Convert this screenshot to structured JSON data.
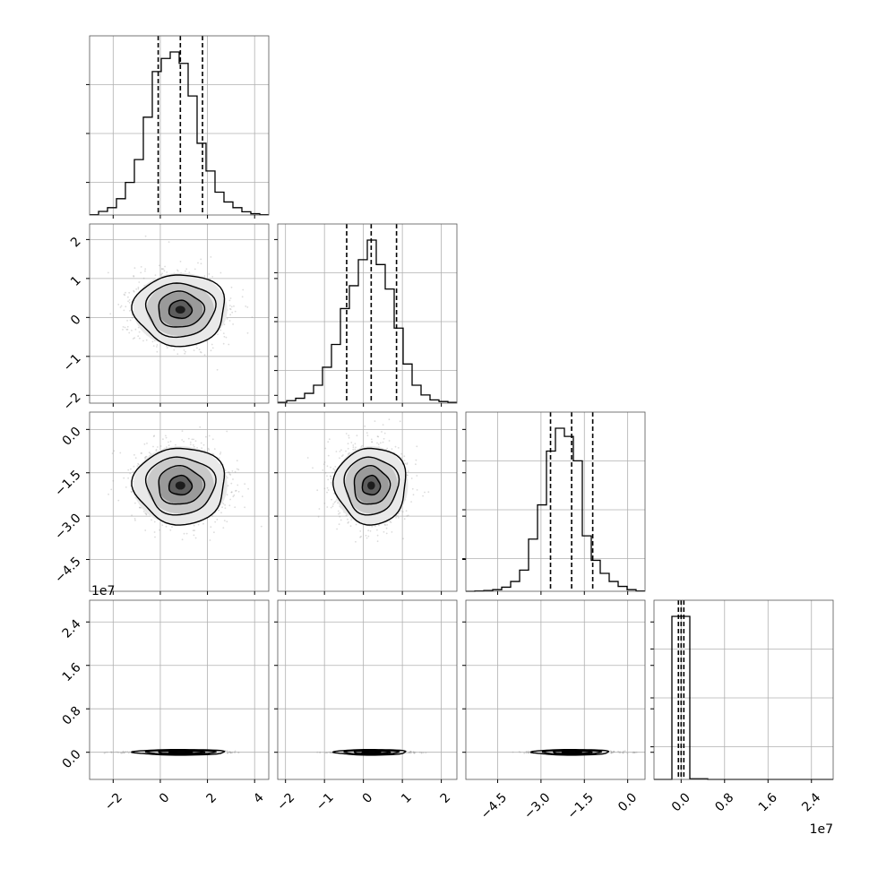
{
  "chart_data": {
    "type": "corner",
    "grid": true,
    "parameters": [
      {
        "range": [
          -3.0,
          4.6
        ],
        "ticks": [
          -2,
          0,
          2,
          4
        ],
        "tick_labels": [
          "−2",
          "0",
          "2",
          "4"
        ]
      },
      {
        "range": [
          -2.2,
          2.4
        ],
        "ticks": [
          -2,
          -1,
          0,
          1,
          2
        ],
        "tick_labels": [
          "−2",
          "−1",
          "0",
          "1",
          "2"
        ]
      },
      {
        "range": [
          -5.6,
          0.6
        ],
        "ticks": [
          -4.5,
          -3.0,
          -1.5,
          0.0
        ],
        "tick_labels": [
          "−4.5",
          "−3.0",
          "−1.5",
          "0.0"
        ]
      },
      {
        "range": [
          -5000000,
          28000000
        ],
        "ticks": [
          0,
          8000000,
          16000000,
          24000000
        ],
        "tick_labels": [
          "0.0",
          "0.8",
          "1.6",
          "2.4"
        ],
        "offset_text": "1e7"
      }
    ],
    "histograms": [
      {
        "param": 0,
        "bin_edges": [
          -3.0,
          -2.62,
          -2.24,
          -1.86,
          -1.48,
          -1.1,
          -0.72,
          -0.34,
          0.04,
          0.42,
          0.8,
          1.18,
          1.56,
          1.94,
          2.32,
          2.7,
          3.08,
          3.46,
          3.84,
          4.22,
          4.6
        ],
        "counts": [
          0.2,
          2.2,
          4.5,
          10,
          20,
          34,
          60,
          88,
          96,
          100,
          93,
          73,
          44,
          27,
          14,
          8,
          4.5,
          2,
          0.8,
          0.2
        ],
        "quantiles": [
          -0.09,
          0.85,
          1.79
        ]
      },
      {
        "param": 1,
        "bin_edges": [
          -2.2,
          -1.97,
          -1.74,
          -1.51,
          -1.28,
          -1.05,
          -0.82,
          -0.59,
          -0.36,
          -0.13,
          0.1,
          0.33,
          0.56,
          0.79,
          1.02,
          1.25,
          1.48,
          1.71,
          1.94,
          2.17,
          2.4
        ],
        "counts": [
          0.5,
          1.5,
          3,
          6,
          11,
          22,
          36,
          58,
          72,
          88,
          100,
          85,
          70,
          46,
          24,
          11,
          5,
          2,
          1,
          0.5
        ],
        "quantiles": [
          -0.43,
          0.2,
          0.85
        ]
      },
      {
        "param": 2,
        "bin_edges": [
          -5.6,
          -5.29,
          -4.98,
          -4.67,
          -4.36,
          -4.05,
          -3.74,
          -3.43,
          -3.12,
          -2.81,
          -2.5,
          -2.19,
          -1.88,
          -1.57,
          -1.26,
          -0.95,
          -0.64,
          -0.33,
          -0.02,
          0.29,
          0.6
        ],
        "counts": [
          0,
          0.2,
          0.5,
          1,
          2.5,
          6,
          13,
          32,
          53,
          86,
          100,
          95,
          80,
          34,
          19,
          11,
          6,
          3,
          1,
          0.2
        ],
        "quantiles": [
          -2.67,
          -1.94,
          -1.21
        ]
      },
      {
        "param": 3,
        "bin_edges": [
          -5000000,
          -1700000,
          1600000,
          4900000,
          8200000,
          11500000,
          14800000,
          18100000,
          21400000,
          24700000,
          28000000
        ],
        "counts": [
          0,
          100,
          0.4,
          0,
          0,
          0,
          0,
          0,
          0,
          0
        ],
        "quantiles": [
          -500000,
          0,
          500000
        ]
      }
    ],
    "pair_plots": [
      {
        "x_param": 0,
        "y_param": 1,
        "center": [
          0.85,
          0.2
        ],
        "sd": [
          0.95,
          0.45
        ]
      },
      {
        "x_param": 0,
        "y_param": 2,
        "center": [
          0.85,
          -1.94
        ],
        "sd": [
          0.95,
          0.65
        ]
      },
      {
        "x_param": 1,
        "y_param": 2,
        "center": [
          0.2,
          -1.94
        ],
        "sd": [
          0.45,
          0.65
        ]
      },
      {
        "x_param": 0,
        "y_param": 3,
        "center": [
          0.85,
          0
        ],
        "sd": [
          0.95,
          250000
        ]
      },
      {
        "x_param": 1,
        "y_param": 3,
        "center": [
          0.2,
          0
        ],
        "sd": [
          0.45,
          250000
        ]
      },
      {
        "x_param": 2,
        "y_param": 3,
        "center": [
          -1.94,
          0
        ],
        "sd": [
          0.65,
          250000
        ]
      }
    ],
    "contour_levels_sigma": [
      0.5,
      1.0,
      1.5,
      2.0
    ],
    "colors": {
      "line": "#000000",
      "grid": "#b0b0b0",
      "scatter": "#9a9a9a",
      "frame": "#000000"
    }
  }
}
